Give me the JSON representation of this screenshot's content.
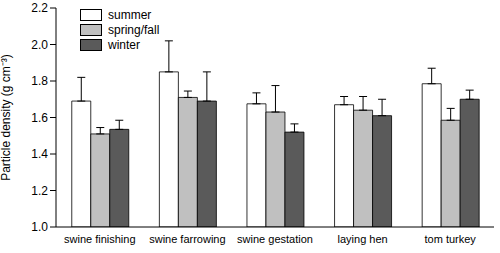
{
  "chart_data": {
    "type": "bar",
    "y_label": "Particle density (g cm⁻³)",
    "categories": [
      "swine finishing",
      "swine farrowing",
      "swine gestation",
      "laying hen",
      "tom turkey"
    ],
    "series": [
      {
        "name": "summer",
        "color": "#ffffff",
        "values": [
          1.69,
          1.85,
          1.675,
          1.67,
          1.785
        ],
        "errors": [
          0.13,
          0.17,
          0.06,
          0.045,
          0.085
        ]
      },
      {
        "name": "spring/fall",
        "color": "#c0c0c0",
        "values": [
          1.51,
          1.71,
          1.63,
          1.64,
          1.585
        ],
        "errors": [
          0.035,
          0.035,
          0.145,
          0.075,
          0.065
        ]
      },
      {
        "name": "winter",
        "color": "#5a5a5a",
        "values": [
          1.535,
          1.69,
          1.52,
          1.61,
          1.7
        ],
        "errors": [
          0.05,
          0.16,
          0.045,
          0.09,
          0.05
        ]
      }
    ],
    "ylim": [
      1.0,
      2.2
    ],
    "yticks": [
      {
        "value": 1.0,
        "label": "1.0"
      },
      {
        "value": 1.2,
        "label": "1.2"
      },
      {
        "value": 1.4,
        "label": "1.4"
      },
      {
        "value": 1.6,
        "label": "1.6"
      },
      {
        "value": 1.8,
        "label": "1.8"
      },
      {
        "value": 2.0,
        "label": "2.0"
      },
      {
        "value": 2.2,
        "label": "2.2"
      }
    ],
    "grid": false,
    "legend": "upper left"
  }
}
